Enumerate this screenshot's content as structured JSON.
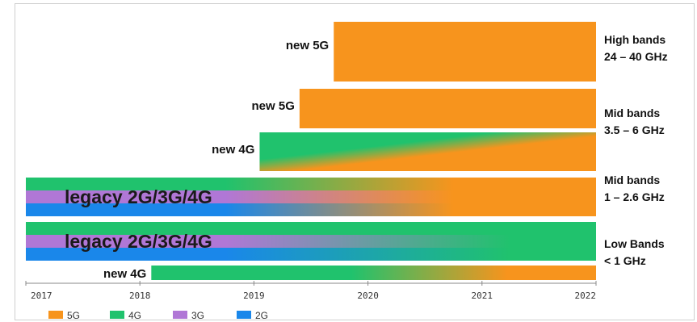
{
  "chart_data": {
    "type": "timeline",
    "title": "",
    "xlabel": "",
    "ylabel": "",
    "x_ticks": [
      "2017",
      "2018",
      "2019",
      "2020",
      "2021",
      "2022"
    ],
    "xlim": [
      2017,
      2022
    ],
    "legend": [
      {
        "name": "5G",
        "color": "#f7941d"
      },
      {
        "name": "4G",
        "color": "#20c26d"
      },
      {
        "name": "3G",
        "color": "#b077d6"
      },
      {
        "name": "2G",
        "color": "#1a87ea"
      }
    ],
    "legend_placement": "bottom-left",
    "bands": [
      {
        "label_line1": "High bands",
        "label_line2": "24 – 40 GHz"
      },
      {
        "label_line1": "Mid bands",
        "label_line2": "3.5 – 6 GHz"
      },
      {
        "label_line1": "Mid bands",
        "label_line2": "1 – 2.6 GHz"
      },
      {
        "label_line1": "Low Bands",
        "label_line2": "< 1 GHz"
      }
    ],
    "bars": [
      {
        "label": "new 5G",
        "start": 2019.7,
        "end": 2022,
        "fill": "5G"
      },
      {
        "label": "new 5G",
        "start": 2019.4,
        "end": 2022,
        "fill": "5G"
      },
      {
        "label": "new 4G",
        "start": 2019.05,
        "end": 2022,
        "fill": "4G-to-5G"
      },
      {
        "label": "legacy 2G/3G/4G",
        "start": 2017,
        "end": 2022,
        "fill": "legacy-to-5G"
      },
      {
        "label": "legacy 2G/3G/4G",
        "start": 2017,
        "end": 2022,
        "fill": "legacy-to-4G"
      },
      {
        "label": "new 4G",
        "start": 2018.1,
        "end": 2022,
        "fill": "4G-to-5G-low"
      }
    ]
  }
}
